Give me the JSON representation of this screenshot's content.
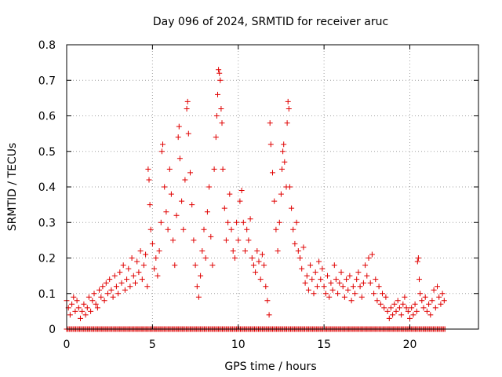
{
  "chart_data": {
    "type": "scatter",
    "title": "Day 096 of 2024, SRMTID for receiver aruc",
    "xlabel": "GPS time / hours",
    "ylabel": "SRMTID / TECUs",
    "xlim": [
      0,
      24
    ],
    "ylim": [
      0,
      0.8
    ],
    "xticks": [
      0,
      5,
      10,
      15,
      20
    ],
    "xtick_labels": [
      "0",
      "5",
      "10",
      "15",
      "20"
    ],
    "yticks": [
      0,
      0.1,
      0.2,
      0.3,
      0.4,
      0.5,
      0.6,
      0.7,
      0.8
    ],
    "ytick_labels": [
      "0",
      "0.1",
      "0.2",
      "0.3",
      "0.4",
      "0.5",
      "0.6",
      "0.7",
      "0.8"
    ],
    "grid": true,
    "marker": "+",
    "marker_color": "#e00000",
    "series": [
      {
        "name": "SRMTID",
        "points": [
          [
            0.0,
            0.08
          ],
          [
            0.1,
            0.06
          ],
          [
            0.2,
            0.04
          ],
          [
            0.3,
            0.07
          ],
          [
            0.4,
            0.09
          ],
          [
            0.5,
            0.05
          ],
          [
            0.6,
            0.08
          ],
          [
            0.7,
            0.06
          ],
          [
            0.8,
            0.03
          ],
          [
            0.9,
            0.05
          ],
          [
            1.0,
            0.07
          ],
          [
            1.1,
            0.04
          ],
          [
            1.2,
            0.06
          ],
          [
            1.3,
            0.09
          ],
          [
            1.4,
            0.05
          ],
          [
            1.5,
            0.08
          ],
          [
            1.6,
            0.1
          ],
          [
            1.7,
            0.07
          ],
          [
            1.8,
            0.06
          ],
          [
            1.9,
            0.11
          ],
          [
            2.0,
            0.09
          ],
          [
            2.1,
            0.12
          ],
          [
            2.2,
            0.08
          ],
          [
            2.3,
            0.13
          ],
          [
            2.4,
            0.1
          ],
          [
            2.5,
            0.14
          ],
          [
            2.6,
            0.11
          ],
          [
            2.7,
            0.09
          ],
          [
            2.8,
            0.15
          ],
          [
            2.9,
            0.12
          ],
          [
            3.0,
            0.1
          ],
          [
            3.1,
            0.16
          ],
          [
            3.2,
            0.13
          ],
          [
            3.3,
            0.18
          ],
          [
            3.4,
            0.11
          ],
          [
            3.5,
            0.14
          ],
          [
            3.6,
            0.17
          ],
          [
            3.7,
            0.12
          ],
          [
            3.8,
            0.2
          ],
          [
            3.9,
            0.15
          ],
          [
            4.0,
            0.13
          ],
          [
            4.1,
            0.19
          ],
          [
            4.2,
            0.16
          ],
          [
            4.3,
            0.22
          ],
          [
            4.4,
            0.14
          ],
          [
            4.5,
            0.18
          ],
          [
            4.6,
            0.21
          ],
          [
            4.7,
            0.12
          ],
          [
            4.75,
            0.45
          ],
          [
            4.8,
            0.42
          ],
          [
            4.85,
            0.35
          ],
          [
            4.9,
            0.28
          ],
          [
            5.0,
            0.24
          ],
          [
            5.1,
            0.17
          ],
          [
            5.2,
            0.2
          ],
          [
            5.3,
            0.15
          ],
          [
            5.4,
            0.22
          ],
          [
            5.5,
            0.3
          ],
          [
            5.55,
            0.5
          ],
          [
            5.6,
            0.52
          ],
          [
            5.7,
            0.4
          ],
          [
            5.8,
            0.33
          ],
          [
            5.9,
            0.28
          ],
          [
            6.0,
            0.45
          ],
          [
            6.1,
            0.38
          ],
          [
            6.2,
            0.25
          ],
          [
            6.3,
            0.18
          ],
          [
            6.4,
            0.32
          ],
          [
            6.5,
            0.54
          ],
          [
            6.55,
            0.57
          ],
          [
            6.6,
            0.48
          ],
          [
            6.7,
            0.36
          ],
          [
            6.8,
            0.28
          ],
          [
            6.9,
            0.42
          ],
          [
            7.0,
            0.62
          ],
          [
            7.05,
            0.64
          ],
          [
            7.1,
            0.55
          ],
          [
            7.2,
            0.44
          ],
          [
            7.3,
            0.35
          ],
          [
            7.4,
            0.25
          ],
          [
            7.5,
            0.18
          ],
          [
            7.6,
            0.12
          ],
          [
            7.7,
            0.09
          ],
          [
            7.8,
            0.15
          ],
          [
            7.9,
            0.22
          ],
          [
            8.0,
            0.28
          ],
          [
            8.1,
            0.2
          ],
          [
            8.2,
            0.33
          ],
          [
            8.3,
            0.4
          ],
          [
            8.4,
            0.26
          ],
          [
            8.5,
            0.18
          ],
          [
            8.6,
            0.45
          ],
          [
            8.7,
            0.54
          ],
          [
            8.75,
            0.6
          ],
          [
            8.8,
            0.66
          ],
          [
            8.85,
            0.73
          ],
          [
            8.9,
            0.72
          ],
          [
            8.95,
            0.7
          ],
          [
            9.0,
            0.62
          ],
          [
            9.05,
            0.58
          ],
          [
            9.1,
            0.45
          ],
          [
            9.2,
            0.34
          ],
          [
            9.3,
            0.25
          ],
          [
            9.4,
            0.3
          ],
          [
            9.5,
            0.38
          ],
          [
            9.6,
            0.28
          ],
          [
            9.7,
            0.22
          ],
          [
            9.8,
            0.2
          ],
          [
            9.9,
            0.3
          ],
          [
            10.0,
            0.25
          ],
          [
            10.1,
            0.36
          ],
          [
            10.2,
            0.39
          ],
          [
            10.3,
            0.3
          ],
          [
            10.4,
            0.22
          ],
          [
            10.5,
            0.28
          ],
          [
            10.6,
            0.25
          ],
          [
            10.7,
            0.31
          ],
          [
            10.8,
            0.2
          ],
          [
            10.9,
            0.18
          ],
          [
            11.0,
            0.16
          ],
          [
            11.1,
            0.22
          ],
          [
            11.2,
            0.19
          ],
          [
            11.3,
            0.14
          ],
          [
            11.4,
            0.21
          ],
          [
            11.5,
            0.18
          ],
          [
            11.6,
            0.12
          ],
          [
            11.7,
            0.08
          ],
          [
            11.8,
            0.04
          ],
          [
            11.85,
            0.58
          ],
          [
            11.9,
            0.52
          ],
          [
            12.0,
            0.44
          ],
          [
            12.1,
            0.36
          ],
          [
            12.2,
            0.28
          ],
          [
            12.3,
            0.22
          ],
          [
            12.4,
            0.3
          ],
          [
            12.5,
            0.38
          ],
          [
            12.55,
            0.45
          ],
          [
            12.6,
            0.5
          ],
          [
            12.65,
            0.52
          ],
          [
            12.7,
            0.47
          ],
          [
            12.8,
            0.4
          ],
          [
            12.85,
            0.58
          ],
          [
            12.9,
            0.64
          ],
          [
            12.95,
            0.62
          ],
          [
            13.0,
            0.4
          ],
          [
            13.1,
            0.34
          ],
          [
            13.2,
            0.28
          ],
          [
            13.3,
            0.24
          ],
          [
            13.4,
            0.3
          ],
          [
            13.5,
            0.22
          ],
          [
            13.6,
            0.2
          ],
          [
            13.7,
            0.17
          ],
          [
            13.8,
            0.23
          ],
          [
            13.9,
            0.13
          ],
          [
            14.0,
            0.15
          ],
          [
            14.1,
            0.11
          ],
          [
            14.2,
            0.18
          ],
          [
            14.3,
            0.14
          ],
          [
            14.4,
            0.1
          ],
          [
            14.5,
            0.16
          ],
          [
            14.6,
            0.12
          ],
          [
            14.7,
            0.19
          ],
          [
            14.8,
            0.14
          ],
          [
            14.9,
            0.17
          ],
          [
            15.0,
            0.12
          ],
          [
            15.1,
            0.1
          ],
          [
            15.2,
            0.15
          ],
          [
            15.3,
            0.09
          ],
          [
            15.4,
            0.13
          ],
          [
            15.5,
            0.11
          ],
          [
            15.6,
            0.18
          ],
          [
            15.7,
            0.14
          ],
          [
            15.8,
            0.1
          ],
          [
            15.9,
            0.13
          ],
          [
            16.0,
            0.16
          ],
          [
            16.1,
            0.12
          ],
          [
            16.2,
            0.09
          ],
          [
            16.3,
            0.14
          ],
          [
            16.4,
            0.11
          ],
          [
            16.5,
            0.15
          ],
          [
            16.6,
            0.08
          ],
          [
            16.7,
            0.12
          ],
          [
            16.8,
            0.1
          ],
          [
            16.9,
            0.14
          ],
          [
            17.0,
            0.16
          ],
          [
            17.1,
            0.12
          ],
          [
            17.2,
            0.09
          ],
          [
            17.3,
            0.13
          ],
          [
            17.4,
            0.18
          ],
          [
            17.5,
            0.15
          ],
          [
            17.6,
            0.2
          ],
          [
            17.7,
            0.13
          ],
          [
            17.8,
            0.21
          ],
          [
            17.9,
            0.1
          ],
          [
            18.0,
            0.14
          ],
          [
            18.1,
            0.08
          ],
          [
            18.2,
            0.12
          ],
          [
            18.3,
            0.07
          ],
          [
            18.4,
            0.1
          ],
          [
            18.5,
            0.06
          ],
          [
            18.6,
            0.09
          ],
          [
            18.7,
            0.05
          ],
          [
            18.8,
            0.03
          ],
          [
            18.9,
            0.06
          ],
          [
            19.0,
            0.04
          ],
          [
            19.1,
            0.07
          ],
          [
            19.2,
            0.05
          ],
          [
            19.3,
            0.08
          ],
          [
            19.4,
            0.06
          ],
          [
            19.5,
            0.04
          ],
          [
            19.6,
            0.07
          ],
          [
            19.7,
            0.09
          ],
          [
            19.8,
            0.06
          ],
          [
            19.9,
            0.05
          ],
          [
            20.0,
            0.03
          ],
          [
            20.1,
            0.06
          ],
          [
            20.2,
            0.04
          ],
          [
            20.3,
            0.07
          ],
          [
            20.4,
            0.05
          ],
          [
            20.45,
            0.19
          ],
          [
            20.5,
            0.2
          ],
          [
            20.55,
            0.14
          ],
          [
            20.6,
            0.1
          ],
          [
            20.7,
            0.08
          ],
          [
            20.8,
            0.06
          ],
          [
            20.9,
            0.09
          ],
          [
            21.0,
            0.05
          ],
          [
            21.1,
            0.07
          ],
          [
            21.2,
            0.04
          ],
          [
            21.3,
            0.08
          ],
          [
            21.4,
            0.11
          ],
          [
            21.5,
            0.06
          ],
          [
            21.6,
            0.12
          ],
          [
            21.7,
            0.09
          ],
          [
            21.8,
            0.07
          ],
          [
            21.9,
            0.1
          ],
          [
            22.0,
            0.08
          ]
        ]
      }
    ],
    "zero_band": {
      "x_start": 0,
      "x_end": 22.1,
      "value": 0
    }
  }
}
